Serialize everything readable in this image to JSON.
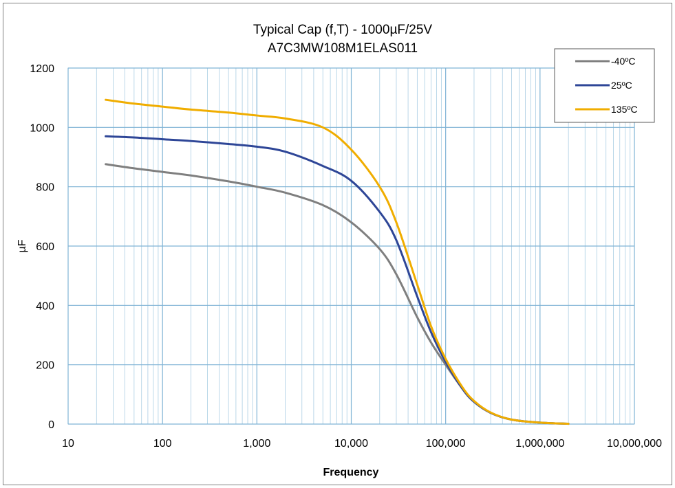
{
  "chart_data": {
    "type": "line",
    "title": "Typical Cap (f,T) - 1000µF/25V",
    "subtitle": "A7C3MW108M1ELAS011",
    "xlabel": "Frequency",
    "ylabel": "µF",
    "x_scale": "log",
    "xlim": [
      10,
      10000000
    ],
    "ylim": [
      0,
      1200
    ],
    "x_ticks": [
      10,
      100,
      1000,
      10000,
      100000,
      1000000,
      10000000
    ],
    "x_tick_labels": [
      "10",
      "100",
      "1,000",
      "10,000",
      "100,000",
      "1,000,000",
      "10,000,000"
    ],
    "y_ticks": [
      0,
      200,
      400,
      600,
      800,
      1000,
      1200
    ],
    "y_tick_labels": [
      "0",
      "200",
      "400",
      "600",
      "800",
      "1000",
      "1200"
    ],
    "grid": true,
    "legend_position": "top-right",
    "x": [
      25,
      50,
      100,
      200,
      500,
      1000,
      2000,
      5000,
      10000,
      20000,
      30000,
      50000,
      70000,
      100000,
      150000,
      200000,
      300000,
      500000,
      1000000,
      2000000
    ],
    "series": [
      {
        "name": "-40ºC",
        "color": "#7f7f7f",
        "values": [
          876,
          862,
          850,
          838,
          818,
          800,
          780,
          738,
          680,
          590,
          505,
          360,
          275,
          200,
          120,
          75,
          38,
          15,
          5,
          1
        ]
      },
      {
        "name": "25ºC",
        "color": "#2e4697",
        "values": [
          970,
          966,
          960,
          954,
          944,
          935,
          918,
          870,
          820,
          715,
          620,
          430,
          310,
          210,
          120,
          75,
          38,
          15,
          5,
          1
        ]
      },
      {
        "name": "135ºC",
        "color": "#f0ad00",
        "values": [
          1093,
          1080,
          1070,
          1060,
          1050,
          1040,
          1030,
          1000,
          925,
          800,
          680,
          470,
          330,
          220,
          125,
          78,
          39,
          15,
          5,
          1
        ]
      }
    ]
  }
}
